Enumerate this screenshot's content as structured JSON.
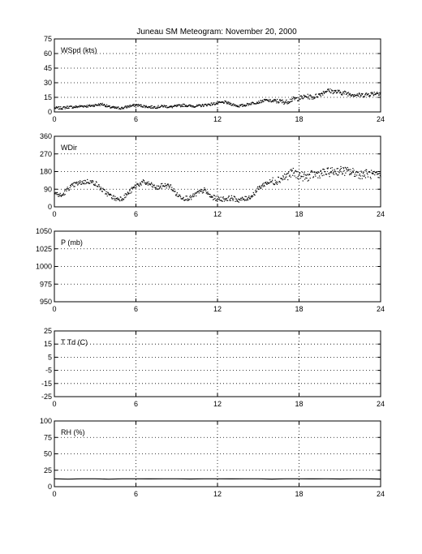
{
  "title": "Juneau SM Meteogram:  November 20, 2000",
  "x_ticks": [
    "0",
    "6",
    "12",
    "18",
    "24"
  ],
  "chart_data": [
    {
      "type": "scatter",
      "label": "WSpd (kts)",
      "xlim": [
        0,
        24
      ],
      "ylim": [
        0,
        75
      ],
      "y_ticks": [
        "0",
        "15",
        "30",
        "45",
        "60",
        "75"
      ],
      "grid": true,
      "series": [
        {
          "x": [
            0,
            0.5,
            1,
            1.5,
            2,
            2.5,
            3,
            3.5,
            4,
            4.5,
            5,
            5.5,
            6,
            6.5,
            7,
            7.5,
            8,
            8.5,
            9,
            9.5,
            10,
            10.5,
            11,
            11.5,
            12,
            12.5,
            13,
            13.5,
            14,
            14.5,
            15,
            15.5,
            16,
            16.5,
            17,
            17.5,
            18,
            18.5,
            19,
            19.5,
            20,
            20.5,
            21,
            21.5,
            22,
            22.5,
            23,
            23.5,
            24
          ],
          "y": [
            4,
            4,
            5,
            5,
            6,
            6,
            7,
            8,
            5,
            4,
            4,
            6,
            7,
            6,
            5,
            5,
            6,
            5,
            6,
            7,
            6,
            6,
            7,
            8,
            9,
            10,
            8,
            6,
            7,
            9,
            10,
            12,
            11,
            11,
            10,
            13,
            14,
            16,
            15,
            18,
            22,
            21,
            20,
            19,
            18,
            17,
            18,
            19,
            20
          ]
        }
      ]
    },
    {
      "type": "scatter",
      "label": "WDir",
      "xlim": [
        0,
        24
      ],
      "ylim": [
        0,
        360
      ],
      "y_ticks": [
        "0",
        "90",
        "180",
        "270",
        "360"
      ],
      "grid": true,
      "series": [
        {
          "x": [
            0,
            0.5,
            1,
            1.5,
            2,
            2.5,
            3,
            3.5,
            4,
            4.5,
            5,
            5.5,
            6,
            6.5,
            7,
            7.5,
            8,
            8.5,
            9,
            9.5,
            10,
            10.5,
            11,
            11.5,
            12,
            12.5,
            13,
            13.5,
            14,
            14.5,
            15,
            15.5,
            16,
            16.5,
            17,
            17.5,
            18,
            18.5,
            19,
            19.5,
            20,
            20.5,
            21,
            21.5,
            22,
            22.5,
            23,
            23.5,
            24
          ],
          "y": [
            70,
            55,
            95,
            115,
            125,
            130,
            120,
            85,
            60,
            40,
            45,
            75,
            110,
            125,
            115,
            95,
            110,
            105,
            60,
            45,
            45,
            70,
            85,
            50,
            40,
            40,
            45,
            35,
            40,
            55,
            95,
            120,
            130,
            140,
            155,
            175,
            160,
            150,
            165,
            170,
            175,
            180,
            185,
            180,
            175,
            165,
            170,
            160,
            155
          ]
        }
      ]
    },
    {
      "type": "line",
      "label": "P (mb)",
      "xlim": [
        0,
        24
      ],
      "ylim": [
        950,
        1050
      ],
      "y_ticks": [
        "950",
        "975",
        "1000",
        "1025",
        "1050"
      ],
      "grid": true,
      "series": []
    },
    {
      "type": "line",
      "label": "T Td (C)",
      "xlim": [
        0,
        24
      ],
      "ylim": [
        -25,
        25
      ],
      "y_ticks": [
        "-25",
        "-15",
        "-5",
        "5",
        "15",
        "25"
      ],
      "grid": true,
      "series": []
    },
    {
      "type": "line",
      "label": "RH (%)",
      "xlim": [
        0,
        24
      ],
      "ylim": [
        0,
        100
      ],
      "y_ticks": [
        "0",
        "25",
        "50",
        "75",
        "100"
      ],
      "grid": true,
      "series": [
        {
          "x": [
            0,
            1,
            2,
            3,
            4,
            5,
            6,
            7,
            8,
            9,
            10,
            11,
            12,
            13,
            14,
            15,
            16,
            17,
            18,
            19,
            20,
            21,
            22,
            23,
            24
          ],
          "y": [
            12,
            11.5,
            12,
            12,
            11.5,
            12,
            12,
            11.8,
            12,
            12,
            11.7,
            12,
            12,
            11.8,
            12,
            12,
            11.6,
            12,
            12,
            11.8,
            12,
            11.7,
            12,
            12,
            11.6
          ]
        }
      ]
    }
  ]
}
